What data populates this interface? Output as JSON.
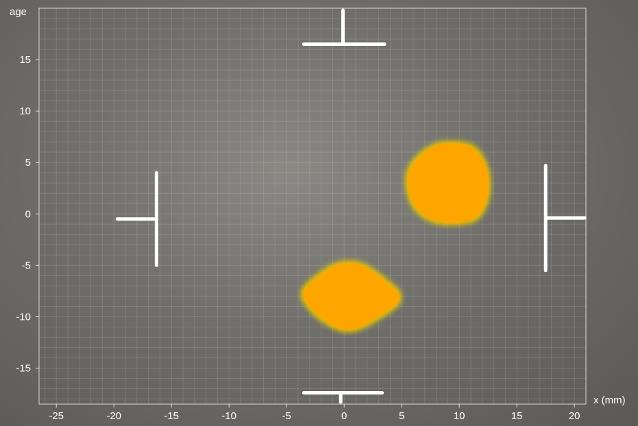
{
  "chart_data": {
    "type": "scatter",
    "xlabel": "x (mm)",
    "ylabel": "age",
    "xlim": [
      -26.5,
      21
    ],
    "ylim": [
      -18.5,
      20
    ],
    "x_ticks": [
      -25,
      -20,
      -15,
      -10,
      -5,
      0,
      5,
      10,
      15,
      20
    ],
    "y_ticks": [
      -15,
      -10,
      -5,
      0,
      5,
      10,
      15
    ],
    "grid": true,
    "colors": {
      "blob": "#ffa500",
      "glow": "#e0c000",
      "markers": "#ffffff"
    },
    "blobs": [
      {
        "shape": "round",
        "points": [
          [
            5.5,
            3.5
          ],
          [
            6.5,
            5.5
          ],
          [
            8.5,
            6.8
          ],
          [
            11.0,
            6.5
          ],
          [
            12.3,
            4.5
          ],
          [
            12.5,
            2.0
          ],
          [
            11.5,
            -0.3
          ],
          [
            9.5,
            -0.9
          ],
          [
            7.5,
            -0.5
          ],
          [
            6.0,
            1.0
          ]
        ]
      },
      {
        "shape": "diamond",
        "points": [
          [
            -3.5,
            -7.5
          ],
          [
            -1.5,
            -5.5
          ],
          [
            0.0,
            -4.8
          ],
          [
            1.5,
            -5.0
          ],
          [
            3.5,
            -6.5
          ],
          [
            4.8,
            -8.2
          ],
          [
            3.0,
            -10.0
          ],
          [
            0.5,
            -11.3
          ],
          [
            -1.5,
            -10.5
          ],
          [
            -3.0,
            -9.0
          ]
        ]
      }
    ],
    "markers": [
      {
        "position": "top",
        "bar": [
          [
            -3.5,
            16.5
          ],
          [
            3.5,
            16.5
          ]
        ],
        "stem": [
          [
            -0.1,
            16.5
          ],
          [
            -0.1,
            19.8
          ]
        ]
      },
      {
        "position": "bottom",
        "bar": [
          [
            -3.5,
            -17.4
          ],
          [
            3.3,
            -17.4
          ]
        ],
        "stem": [
          [
            -0.3,
            -17.4
          ],
          [
            -0.3,
            -18.3
          ]
        ]
      },
      {
        "position": "left",
        "bar": [
          [
            -16.3,
            4.0
          ],
          [
            -16.3,
            -5.0
          ]
        ],
        "stem": [
          [
            -19.7,
            -0.5
          ],
          [
            -16.3,
            -0.5
          ]
        ]
      },
      {
        "position": "right",
        "bar": [
          [
            17.5,
            4.7
          ],
          [
            17.5,
            -5.5
          ]
        ],
        "stem": [
          [
            17.5,
            -0.4
          ],
          [
            20.9,
            -0.4
          ]
        ]
      }
    ]
  }
}
